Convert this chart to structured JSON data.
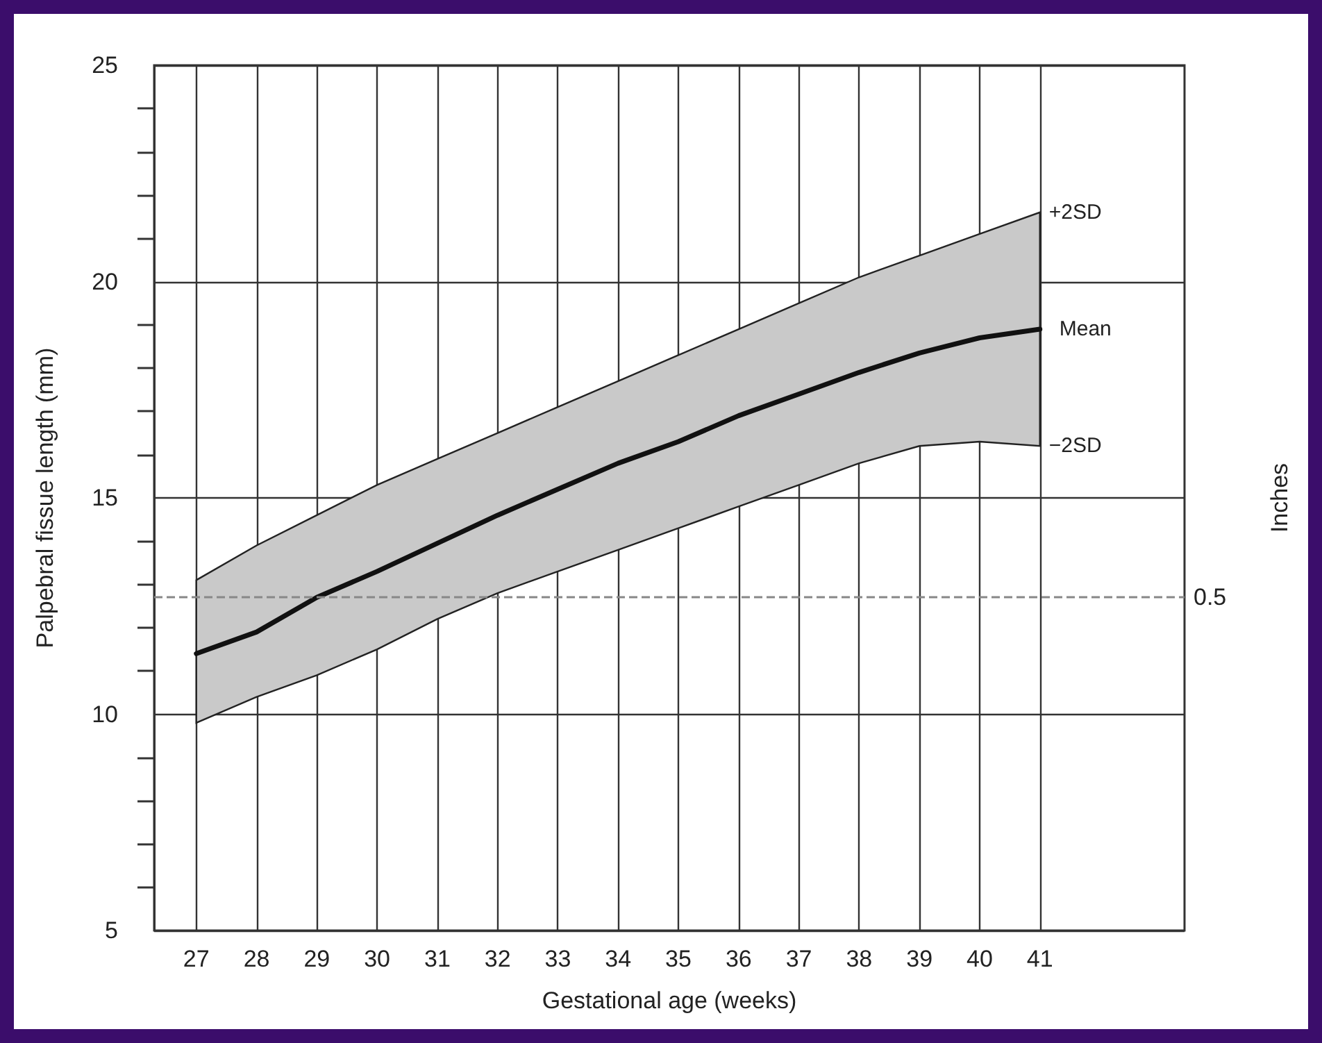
{
  "chart_data": {
    "type": "line",
    "xlabel": "Gestational age (weeks)",
    "ylabel": "Palpebral fissue length (mm)",
    "y2label": "Inches",
    "x": [
      27,
      28,
      29,
      30,
      31,
      32,
      33,
      34,
      35,
      36,
      37,
      38,
      39,
      40,
      41
    ],
    "series": [
      {
        "name": "Mean",
        "color": "#111111",
        "values": [
          11.4,
          11.9,
          12.7,
          13.3,
          13.95,
          14.6,
          15.2,
          15.8,
          16.3,
          16.9,
          17.4,
          17.9,
          18.35,
          18.7,
          18.9
        ],
        "lower": [
          9.8,
          10.4,
          10.9,
          11.5,
          12.2,
          12.8,
          13.3,
          13.8,
          14.3,
          14.8,
          15.3,
          15.8,
          16.2,
          16.3,
          16.2
        ],
        "upper": [
          13.1,
          13.9,
          14.6,
          15.3,
          15.9,
          16.5,
          17.1,
          17.7,
          18.3,
          18.9,
          19.5,
          20.1,
          20.6,
          21.1,
          21.6
        ]
      }
    ],
    "annotations": [
      "+2SD",
      "−2SD",
      "0.5"
    ],
    "xlim": [
      26.3,
      43.4
    ],
    "xticks": [
      27,
      28,
      29,
      30,
      31,
      32,
      33,
      34,
      35,
      36,
      37,
      38,
      39,
      40,
      41
    ],
    "ylim": [
      5,
      25
    ],
    "yticks": [
      5,
      10,
      15,
      20,
      25
    ],
    "ref_lines": [
      {
        "axis": "y",
        "value": 12.7,
        "color": "#888888",
        "line_style": "dashed"
      }
    ],
    "grid": true,
    "legend": false,
    "marker": "none",
    "line_style": "solid"
  }
}
